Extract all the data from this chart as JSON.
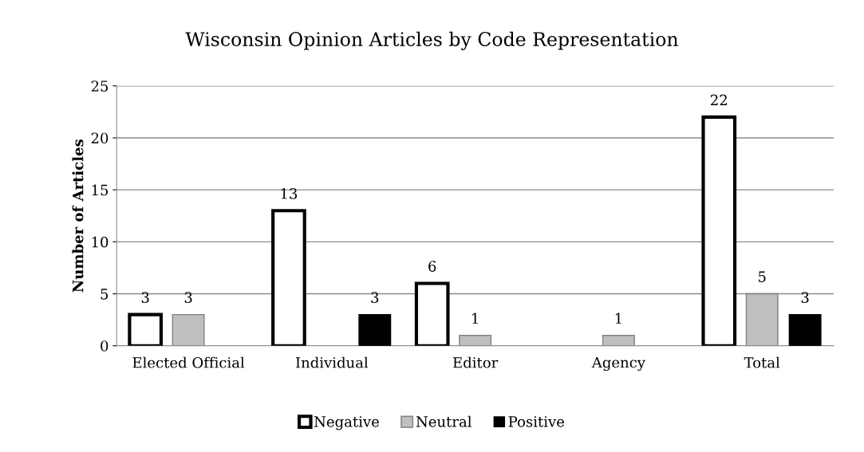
{
  "chart_data": {
    "type": "bar",
    "title": "Wisconsin Opinion Articles by Code Representation",
    "ylabel": "Number of Articles",
    "categories": [
      "Elected Official",
      "Individual",
      "Editor",
      "Agency",
      "Total"
    ],
    "series": [
      {
        "name": "Negative",
        "color": "#ffffff",
        "values": [
          3,
          13,
          6,
          0,
          22
        ],
        "value_labels": [
          "3",
          "13",
          "6",
          null,
          "22"
        ]
      },
      {
        "name": "Neutral",
        "color": "#bfbfbf",
        "values": [
          3,
          0,
          1,
          1,
          5
        ],
        "value_labels": [
          "3",
          null,
          "1",
          "1",
          "5"
        ]
      },
      {
        "name": "Positive",
        "color": "#000000",
        "values": [
          0,
          3,
          0,
          0,
          3
        ],
        "value_labels": [
          null,
          "3",
          null,
          null,
          "3"
        ]
      }
    ],
    "ylim": [
      0,
      25
    ],
    "yticks": [
      0,
      5,
      10,
      15,
      20,
      25
    ],
    "grid": "y",
    "legend": "bottom"
  }
}
